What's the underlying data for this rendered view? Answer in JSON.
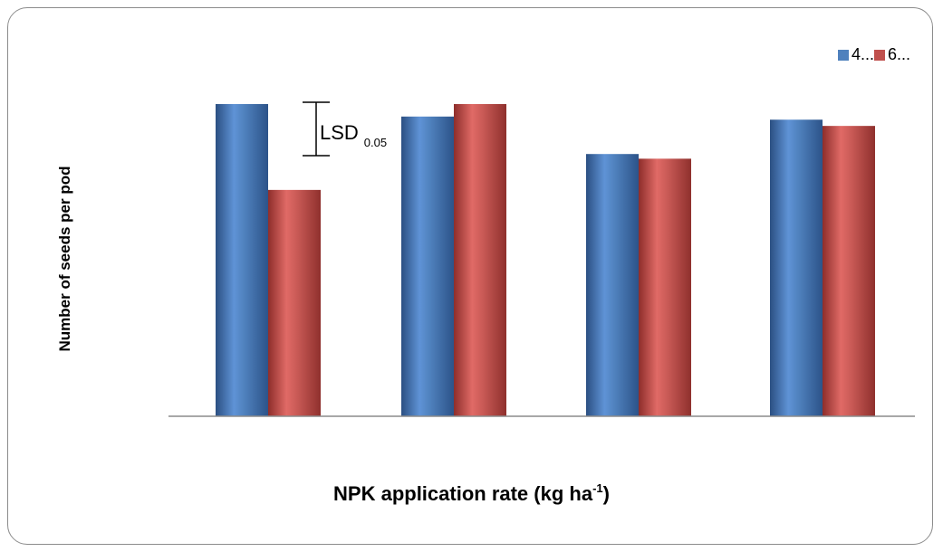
{
  "chart_data": {
    "type": "bar",
    "title": "",
    "xlabel_main": "NPK application rate (kg ha",
    "xlabel_sup": "-1",
    "xlabel_end": ")",
    "ylabel": "Number of seeds per pod",
    "categories": [
      "",
      "",
      "",
      ""
    ],
    "series": [
      {
        "name": "4...",
        "color": "#4f81bd",
        "values": [
          10.0,
          9.6,
          8.4,
          9.5
        ]
      },
      {
        "name": "6...",
        "color": "#c0504d",
        "values": [
          7.25,
          10.0,
          8.25,
          9.3
        ]
      }
    ],
    "ylim": [
      0,
      10
    ],
    "grid": false,
    "legend_position": "top-right",
    "annotation": {
      "label": "LSD",
      "subscript": "0.05",
      "value": 1.65
    }
  }
}
